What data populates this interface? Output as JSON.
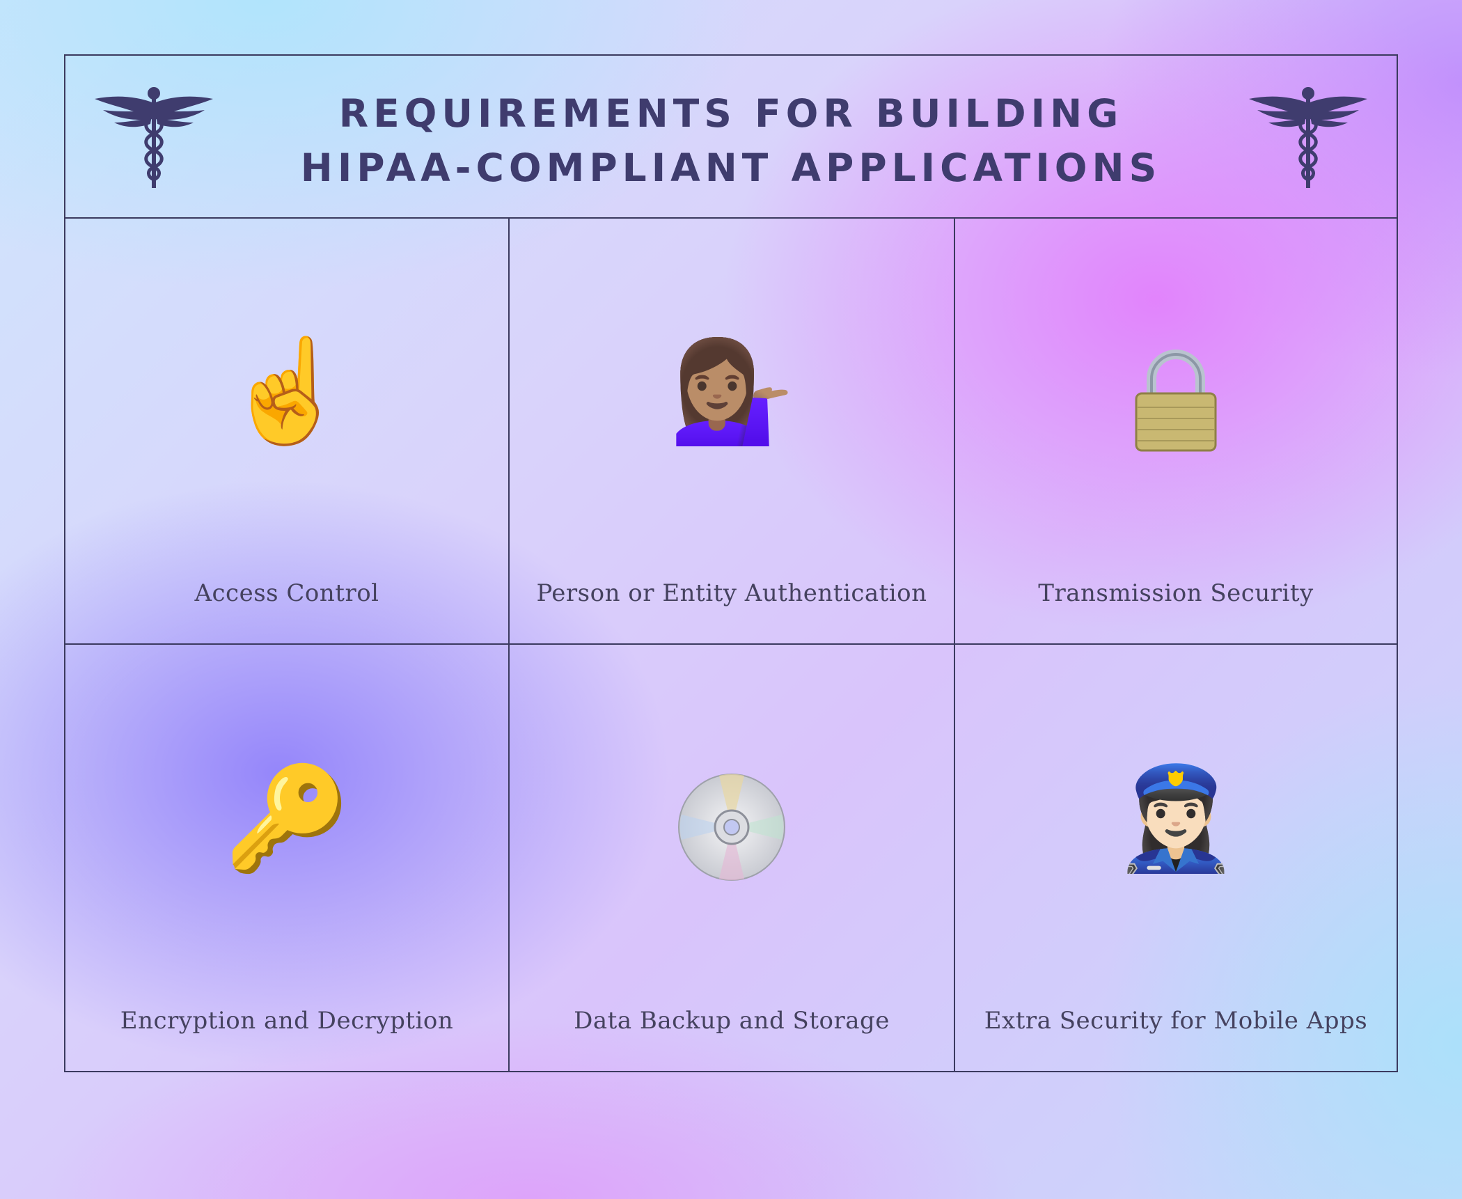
{
  "header": {
    "title_line1": "REQUIREMENTS FOR BUILDING",
    "title_line2": "HIPAA-COMPLIANT APPLICATIONS",
    "left_icon": "caduceus-icon",
    "right_icon": "caduceus-icon"
  },
  "items": [
    {
      "label": "Access Control",
      "icon": "pointing-finger-icon"
    },
    {
      "label": "Person or Entity Authentication",
      "icon": "person-tipping-hand-icon"
    },
    {
      "label": "Transmission Security",
      "icon": "padlock-icon"
    },
    {
      "label": "Encryption and Decryption",
      "icon": "key-icon"
    },
    {
      "label": "Data Backup and Storage",
      "icon": "optical-disc-icon"
    },
    {
      "label": "Extra Security for Mobile Apps",
      "icon": "police-officer-icon"
    }
  ],
  "colors": {
    "text": "#3f3c6e",
    "border": "#3b3a5f"
  }
}
